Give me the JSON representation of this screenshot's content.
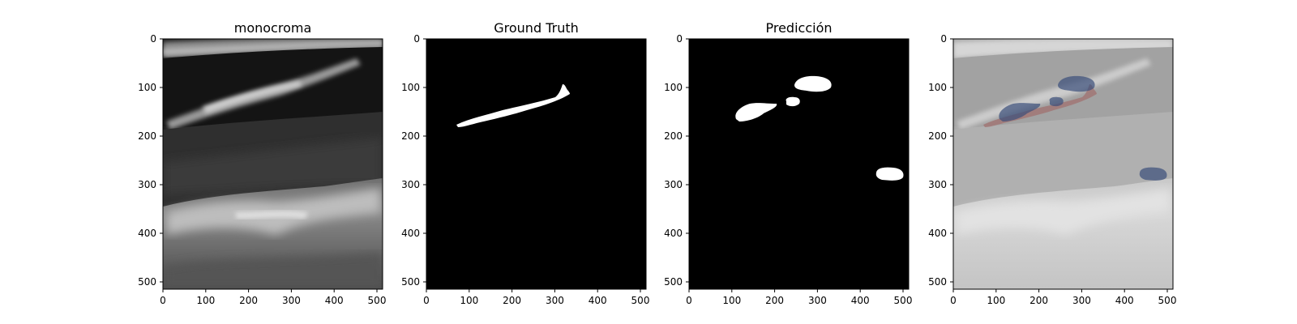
{
  "figure": {
    "panels": [
      {
        "id": "mono",
        "title": "monocroma",
        "x_ticks": [
          "0",
          "100",
          "200",
          "300",
          "400",
          "500"
        ],
        "y_ticks": [
          "0",
          "100",
          "200",
          "300",
          "400",
          "500"
        ]
      },
      {
        "id": "gt",
        "title": "Ground Truth",
        "x_ticks": [
          "0",
          "100",
          "200",
          "300",
          "400",
          "500"
        ],
        "y_ticks": [
          "0",
          "100",
          "200",
          "300",
          "400",
          "500"
        ]
      },
      {
        "id": "pred",
        "title": "Predicción",
        "x_ticks": [
          "0",
          "100",
          "200",
          "300",
          "400",
          "500"
        ],
        "y_ticks": [
          "0",
          "100",
          "200",
          "300",
          "400",
          "500"
        ]
      },
      {
        "id": "overlay",
        "title": "",
        "x_ticks": [
          "0",
          "100",
          "200",
          "300",
          "400",
          "500"
        ],
        "y_ticks": [
          "0",
          "100",
          "200",
          "300",
          "400",
          "500"
        ]
      }
    ],
    "colors": {
      "mask_white": "#ffffff",
      "background_black": "#000000",
      "overlay_ground_truth": "#a0706f",
      "overlay_prediction": "#3a4f7a",
      "overlay_gray": "#c8c8c8"
    }
  }
}
